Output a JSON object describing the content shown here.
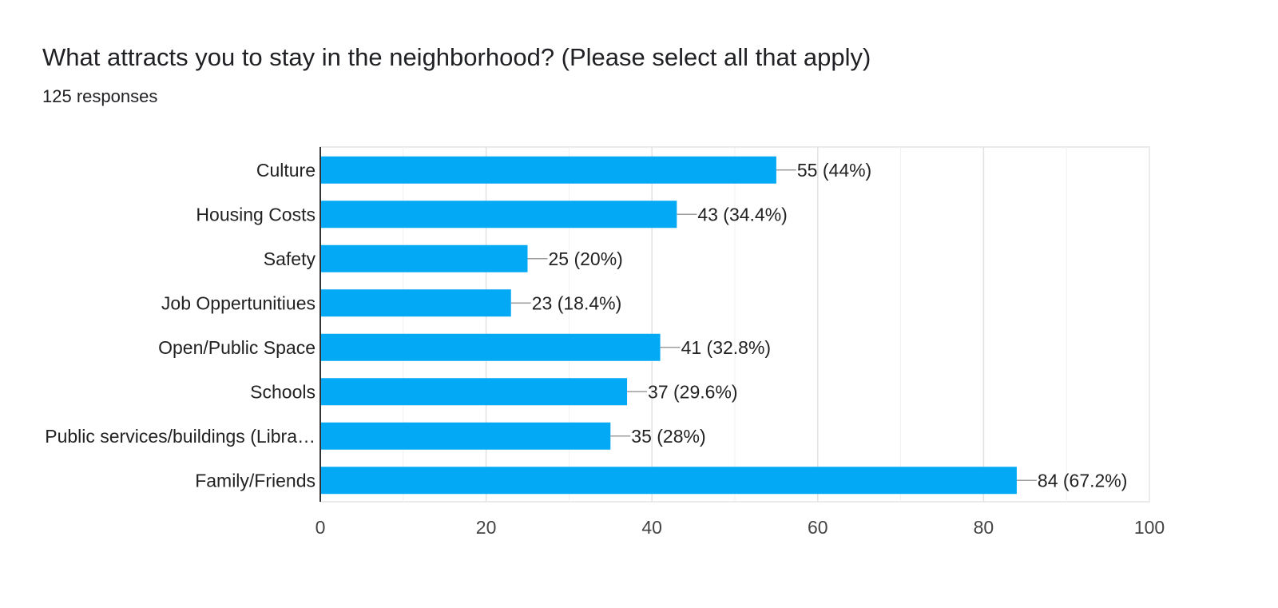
{
  "header": {
    "title": "What attracts you to stay in the neighborhood? (Please select all that apply)",
    "responses": "125 responses"
  },
  "colors": {
    "bar": "#03a9f4",
    "grid": "#ebebeb",
    "axis": "#333333",
    "leader": "#9e9e9e"
  },
  "chart_data": {
    "type": "bar",
    "orientation": "horizontal",
    "title": "What attracts you to stay in the neighborhood? (Please select all that apply)",
    "subtitle": "125 responses",
    "categories": [
      "Culture",
      "Housing Costs",
      "Safety",
      "Job Oppertunitiues",
      "Open/Public Space",
      "Schools",
      "Public services/buildings (Libra…",
      "Family/Friends"
    ],
    "values": [
      55,
      43,
      25,
      23,
      41,
      37,
      35,
      84
    ],
    "data_labels": [
      "55 (44%)",
      "43 (34.4%)",
      "25 (20%)",
      "23 (18.4%)",
      "41 (32.8%)",
      "37 (29.6%)",
      "35 (28%)",
      "84 (67.2%)"
    ],
    "xlim": [
      0,
      100
    ],
    "xticks": [
      0,
      20,
      40,
      60,
      80,
      100
    ],
    "xlabel": "",
    "ylabel": "",
    "grid": true
  }
}
